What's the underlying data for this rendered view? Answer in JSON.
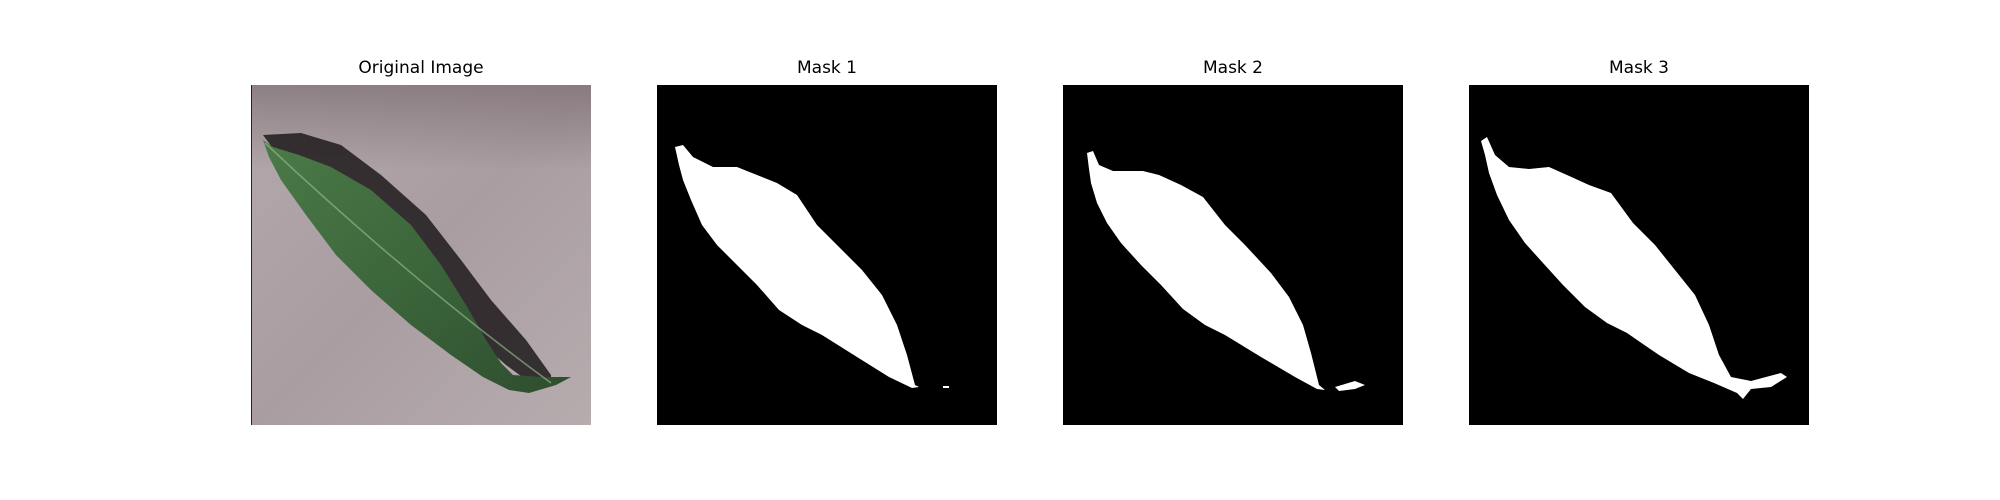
{
  "figure": {
    "panels": [
      {
        "title": "Original Image",
        "kind": "photo"
      },
      {
        "title": "Mask 1",
        "kind": "mask"
      },
      {
        "title": "Mask 2",
        "kind": "mask"
      },
      {
        "title": "Mask 3",
        "kind": "mask"
      }
    ]
  },
  "colors": {
    "background": "#ffffff",
    "mask_background": "#000000",
    "mask_foreground": "#ffffff",
    "photo_background": "#a99da1",
    "leaf": "#3f6a3d",
    "leaf_dark": "#2a4529",
    "shadow": "#1f1a1c"
  }
}
